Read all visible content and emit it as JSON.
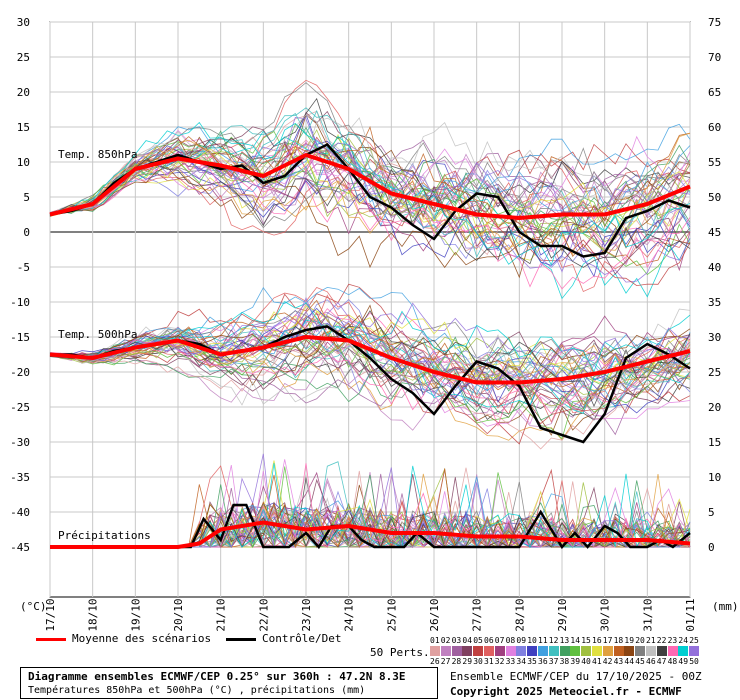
{
  "chart_data": {
    "type": "line",
    "x_ticks": [
      "17/10",
      "18/10",
      "19/10",
      "20/10",
      "21/10",
      "22/10",
      "23/10",
      "24/10",
      "25/10",
      "26/10",
      "27/10",
      "28/10",
      "29/10",
      "30/10",
      "31/10",
      "01/11"
    ],
    "left_axis": {
      "label": "(°C)",
      "ticks": [
        30,
        25,
        20,
        15,
        10,
        5,
        0,
        -5,
        -10,
        -15,
        -20,
        -25,
        -30,
        -35,
        -40,
        -45
      ],
      "range": [
        -45,
        30
      ]
    },
    "right_axis": {
      "label": "(mm)",
      "ticks": [
        75,
        70,
        65,
        60,
        55,
        50,
        45,
        40,
        35,
        30,
        25,
        20,
        15,
        10,
        5,
        0
      ],
      "range": [
        0,
        75
      ]
    },
    "panels": [
      {
        "label": "Temp. 850hPa",
        "mean_x": [
          0,
          1,
          2,
          3,
          4,
          5,
          6,
          7,
          8,
          9,
          10,
          11,
          12,
          13,
          14,
          15
        ],
        "mean": [
          2.5,
          4.0,
          9.0,
          10.5,
          9.5,
          8.0,
          11.0,
          9.0,
          5.5,
          4.0,
          2.5,
          2.0,
          2.5,
          2.5,
          4.0,
          6.5
        ],
        "control_x": [
          0,
          0.5,
          1,
          1.5,
          2,
          2.5,
          3,
          3.5,
          4,
          4.5,
          5,
          5.5,
          6,
          6.5,
          7,
          7.5,
          8,
          8.5,
          9,
          9.5,
          10,
          10.5,
          11,
          11.5,
          12,
          12.5,
          13,
          13.5,
          14,
          14.5,
          15
        ],
        "control": [
          2.5,
          3.0,
          4.0,
          7.0,
          9.0,
          10.0,
          11.0,
          10.0,
          9.0,
          9.5,
          7.0,
          8.0,
          11.0,
          12.5,
          9.0,
          5.0,
          3.5,
          1.0,
          -1.0,
          3.0,
          5.5,
          5.0,
          0.0,
          -2.0,
          -2.0,
          -3.5,
          -3.0,
          2.0,
          3.0,
          4.5,
          3.5
        ]
      },
      {
        "label": "Temp. 500hPa",
        "mean_x": [
          0,
          1,
          2,
          3,
          4,
          5,
          6,
          7,
          8,
          9,
          10,
          11,
          12,
          13,
          14,
          15
        ],
        "mean": [
          -17.5,
          -18.0,
          -16.5,
          -15.5,
          -17.5,
          -16.5,
          -15.0,
          -15.5,
          -18.0,
          -20.0,
          -21.5,
          -21.5,
          -21.0,
          -20.0,
          -18.5,
          -17.0
        ],
        "control_x": [
          0,
          0.5,
          1,
          1.5,
          2,
          2.5,
          3,
          3.5,
          4,
          4.5,
          5,
          5.5,
          6,
          6.5,
          7,
          7.5,
          8,
          8.5,
          9,
          9.5,
          10,
          10.5,
          11,
          11.5,
          12,
          12.5,
          13,
          13.5,
          14,
          14.5,
          15
        ],
        "control": [
          -17.5,
          -17.5,
          -18.0,
          -17.0,
          -16.5,
          -16.0,
          -15.5,
          -16.0,
          -17.5,
          -17.0,
          -16.5,
          -15.0,
          -14.0,
          -13.5,
          -15.5,
          -18.0,
          -21.0,
          -23.0,
          -26.0,
          -22.0,
          -18.5,
          -19.5,
          -22.0,
          -28.0,
          -29.0,
          -30.0,
          -26.0,
          -18.0,
          -16.0,
          -17.5,
          -19.5
        ]
      },
      {
        "label": "Précipitations",
        "unit": "mm",
        "mean_x": [
          0,
          1,
          2,
          3,
          3.5,
          4,
          5,
          6,
          7,
          8,
          9,
          10,
          11,
          12,
          13,
          14,
          15
        ],
        "mean": [
          0,
          0,
          0,
          0,
          0.5,
          2.5,
          3.5,
          2.5,
          3,
          2,
          2,
          1.5,
          1.5,
          1,
          1,
          1,
          0.5
        ],
        "control_x": [
          0,
          1,
          2,
          3,
          3.3,
          3.6,
          4,
          4.3,
          4.6,
          5,
          5.3,
          5.6,
          6,
          6.3,
          6.6,
          7,
          7.3,
          7.6,
          8,
          8.3,
          8.6,
          9,
          9.5,
          10,
          10.5,
          11,
          11.5,
          12,
          12.3,
          12.6,
          13,
          13.3,
          13.6,
          14,
          14.3,
          14.6,
          15
        ],
        "control": [
          0,
          0,
          0,
          0,
          0,
          4,
          1,
          6,
          6,
          0,
          0,
          0,
          2,
          0,
          3,
          3,
          1,
          0,
          0,
          0,
          2,
          0,
          0,
          0,
          0,
          0,
          5,
          0,
          2,
          0,
          3,
          2,
          0,
          0,
          1,
          0,
          2
        ]
      }
    ],
    "ensemble_members": 50,
    "member_colors": [
      "#e0a0a0",
      "#c080c0",
      "#a060a0",
      "#804060",
      "#c04040",
      "#e06060",
      "#a04080",
      "#e080e0",
      "#8080e0",
      "#4040c0",
      "#40a0e0",
      "#40c0c0",
      "#40a060",
      "#60c040",
      "#a0c040",
      "#e0e040",
      "#e0a040",
      "#c06020",
      "#8b4513",
      "#808080",
      "#c0c0c0",
      "#404040",
      "#ff69b4",
      "#00ced1",
      "#9370db"
    ],
    "grid": true
  },
  "legend": {
    "mean_label": "Moyenne des scénarios",
    "control_label": "Contrôle/Det",
    "perts_label": "50 Perts.",
    "mean_color": "#ff0000",
    "control_color": "#000000",
    "perts_row1": [
      "01",
      "02",
      "03",
      "04",
      "05",
      "06",
      "07",
      "08",
      "09",
      "10",
      "11",
      "12",
      "13",
      "14",
      "15",
      "16",
      "17",
      "18",
      "19",
      "20",
      "21",
      "22",
      "23",
      "24",
      "25"
    ],
    "perts_row2": [
      "26",
      "27",
      "28",
      "29",
      "30",
      "31",
      "32",
      "33",
      "34",
      "35",
      "36",
      "37",
      "38",
      "39",
      "40",
      "41",
      "42",
      "43",
      "44",
      "45",
      "46",
      "47",
      "48",
      "49",
      "50"
    ]
  },
  "footer": {
    "title": "Diagramme ensembles ECMWF/CEP 0.25° sur 360h : 47.2N 8.3E",
    "subtitle": "Températures 850hPa et 500hPa (°C) , précipitations (mm)",
    "run": "Ensemble ECMWF/CEP du 17/10/2025 - 00Z",
    "copyright": "Copyright 2025 Meteociel.fr - ECMWF"
  }
}
